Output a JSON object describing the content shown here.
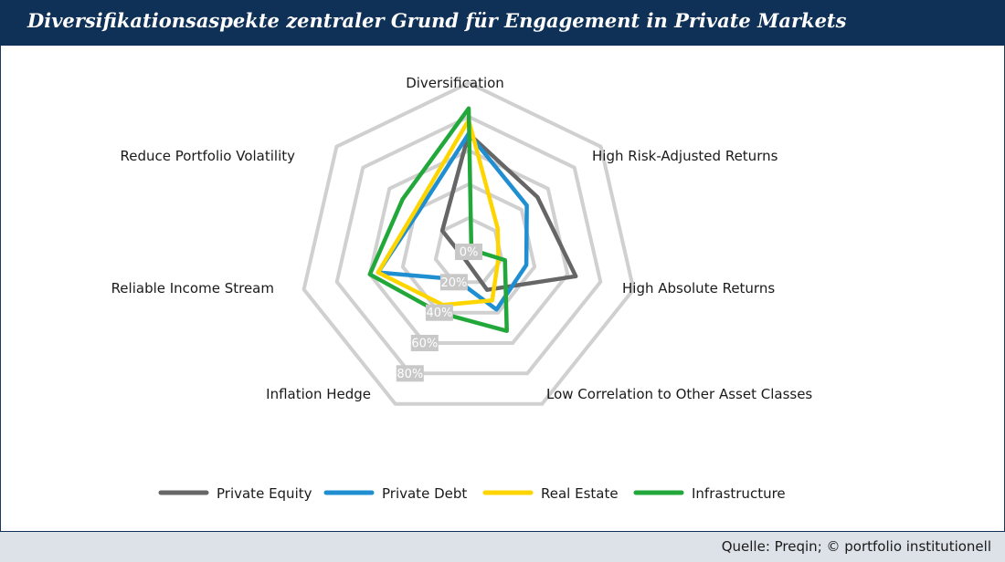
{
  "header": {
    "title": "Diversifikationsaspekte zentraler Grund für Engagement in Private Markets"
  },
  "footer": {
    "source": "Quelle: Preqin; © portfolio institutionell"
  },
  "chart_data": {
    "type": "radar",
    "axes": [
      "Diversification",
      "High Risk-Adjusted Returns",
      "High Absolute Returns",
      "Low Correlation to Other Asset Classes",
      "Inflation Hedge",
      "Reliable Income Stream",
      "Reduce Portfolio Volatility"
    ],
    "tick_labels": [
      "0%",
      "20%",
      "40%",
      "60%",
      "80%"
    ],
    "rlim": [
      0,
      100
    ],
    "grid": true,
    "legend_position": "bottom",
    "series": [
      {
        "name": "Private Equity",
        "color": "#666666",
        "values": [
          70,
          52,
          65,
          25,
          5,
          5,
          20
        ]
      },
      {
        "name": "Private Debt",
        "color": "#1f8fd1",
        "values": [
          70,
          44,
          35,
          38,
          18,
          55,
          38
        ]
      },
      {
        "name": "Real Estate",
        "color": "#ffd500",
        "values": [
          78,
          22,
          18,
          32,
          35,
          55,
          40
        ]
      },
      {
        "name": "Infrastructure",
        "color": "#22a83a",
        "values": [
          85,
          2,
          22,
          52,
          40,
          60,
          50
        ]
      }
    ]
  }
}
